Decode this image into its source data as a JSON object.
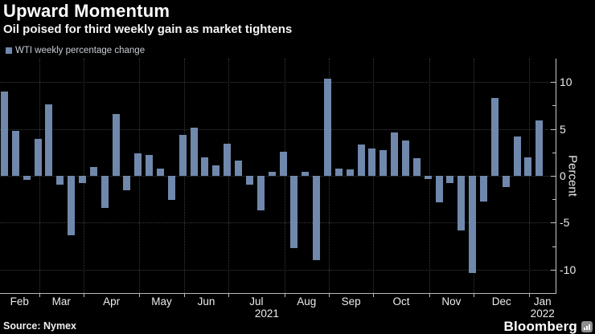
{
  "header": {
    "title": "Upward Momentum",
    "subtitle": "Oil poised for third weekly gain as market tightens"
  },
  "legend": {
    "label": "WTI weekly percentage change"
  },
  "chart_data": {
    "type": "bar",
    "title": "Upward Momentum",
    "subtitle": "Oil poised for third weekly gain as market tightens",
    "series_name": "WTI weekly percentage change",
    "values": [
      9.0,
      4.8,
      -0.4,
      3.9,
      7.6,
      -0.9,
      -6.3,
      -0.8,
      0.9,
      -3.4,
      6.6,
      -1.5,
      2.4,
      2.2,
      0.8,
      -2.6,
      4.4,
      5.1,
      2.0,
      1.1,
      3.4,
      1.6,
      -0.9,
      -3.7,
      0.4,
      2.6,
      -7.7,
      0.4,
      -9.0,
      10.4,
      0.8,
      0.7,
      3.3,
      2.9,
      2.7,
      4.6,
      3.8,
      1.9,
      -0.3,
      -2.8,
      -0.8,
      -5.8,
      -10.4,
      -2.7,
      8.3,
      -1.2,
      4.2,
      2.0,
      5.9
    ],
    "x_months": [
      "Feb",
      "Mar",
      "Apr",
      "May",
      "Jun",
      "Jul",
      "Aug",
      "Sep",
      "Oct",
      "Nov",
      "Dec",
      "Jan"
    ],
    "weeks_per_month": [
      4,
      4,
      5,
      4,
      4,
      5,
      4,
      4,
      5,
      4,
      5,
      1
    ],
    "x_year_labels": [
      {
        "text": "2021",
        "under_month": "Jul"
      },
      {
        "text": "2022",
        "under_month": "Jan"
      }
    ],
    "ylabel": "Percent",
    "ylim": [
      -12.5,
      12.5
    ],
    "y_major_ticks": [
      10,
      5,
      0,
      -5,
      -10
    ],
    "y_minor_ticks": [
      7.5,
      2.5,
      -2.5,
      -7.5
    ],
    "grid": "dotted",
    "legend_position": "top-left",
    "axis_side": "right",
    "bar_color": "#7088ac",
    "background_color": "#000000"
  },
  "footer": {
    "source": "Source: Nymex",
    "brand": "Bloomberg",
    "brand_icon": "chart-bars-icon"
  }
}
